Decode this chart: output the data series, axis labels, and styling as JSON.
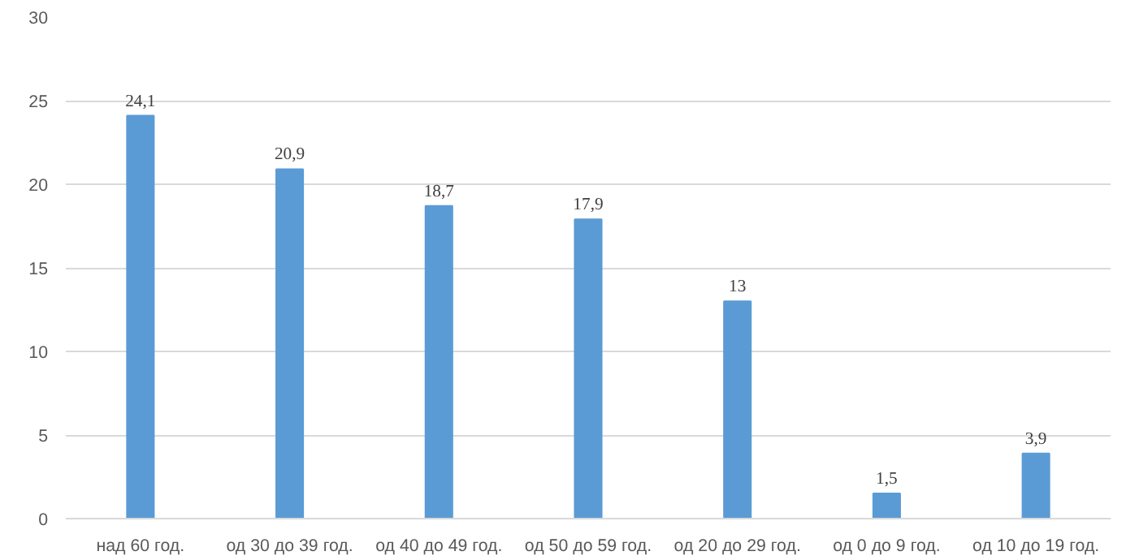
{
  "chart_data": {
    "type": "bar",
    "categories": [
      "над 60 год.",
      "од 30 до 39 год.",
      "од 40 до 49 год.",
      "од 50 до 59 год.",
      "од 20 до 29 год.",
      "од 0 до 9 год.",
      "од 10 до 19 год."
    ],
    "values": [
      24.1,
      20.9,
      18.7,
      17.9,
      13,
      1.5,
      3.9
    ],
    "value_labels": [
      "24,1",
      "20,9",
      "18,7",
      "17,9",
      "13",
      "1,5",
      "3,9"
    ],
    "color": "#5b9bd5",
    "ylim": [
      0,
      30
    ],
    "yticks": [
      0,
      5,
      10,
      15,
      20,
      25,
      30
    ],
    "grid": "y"
  }
}
